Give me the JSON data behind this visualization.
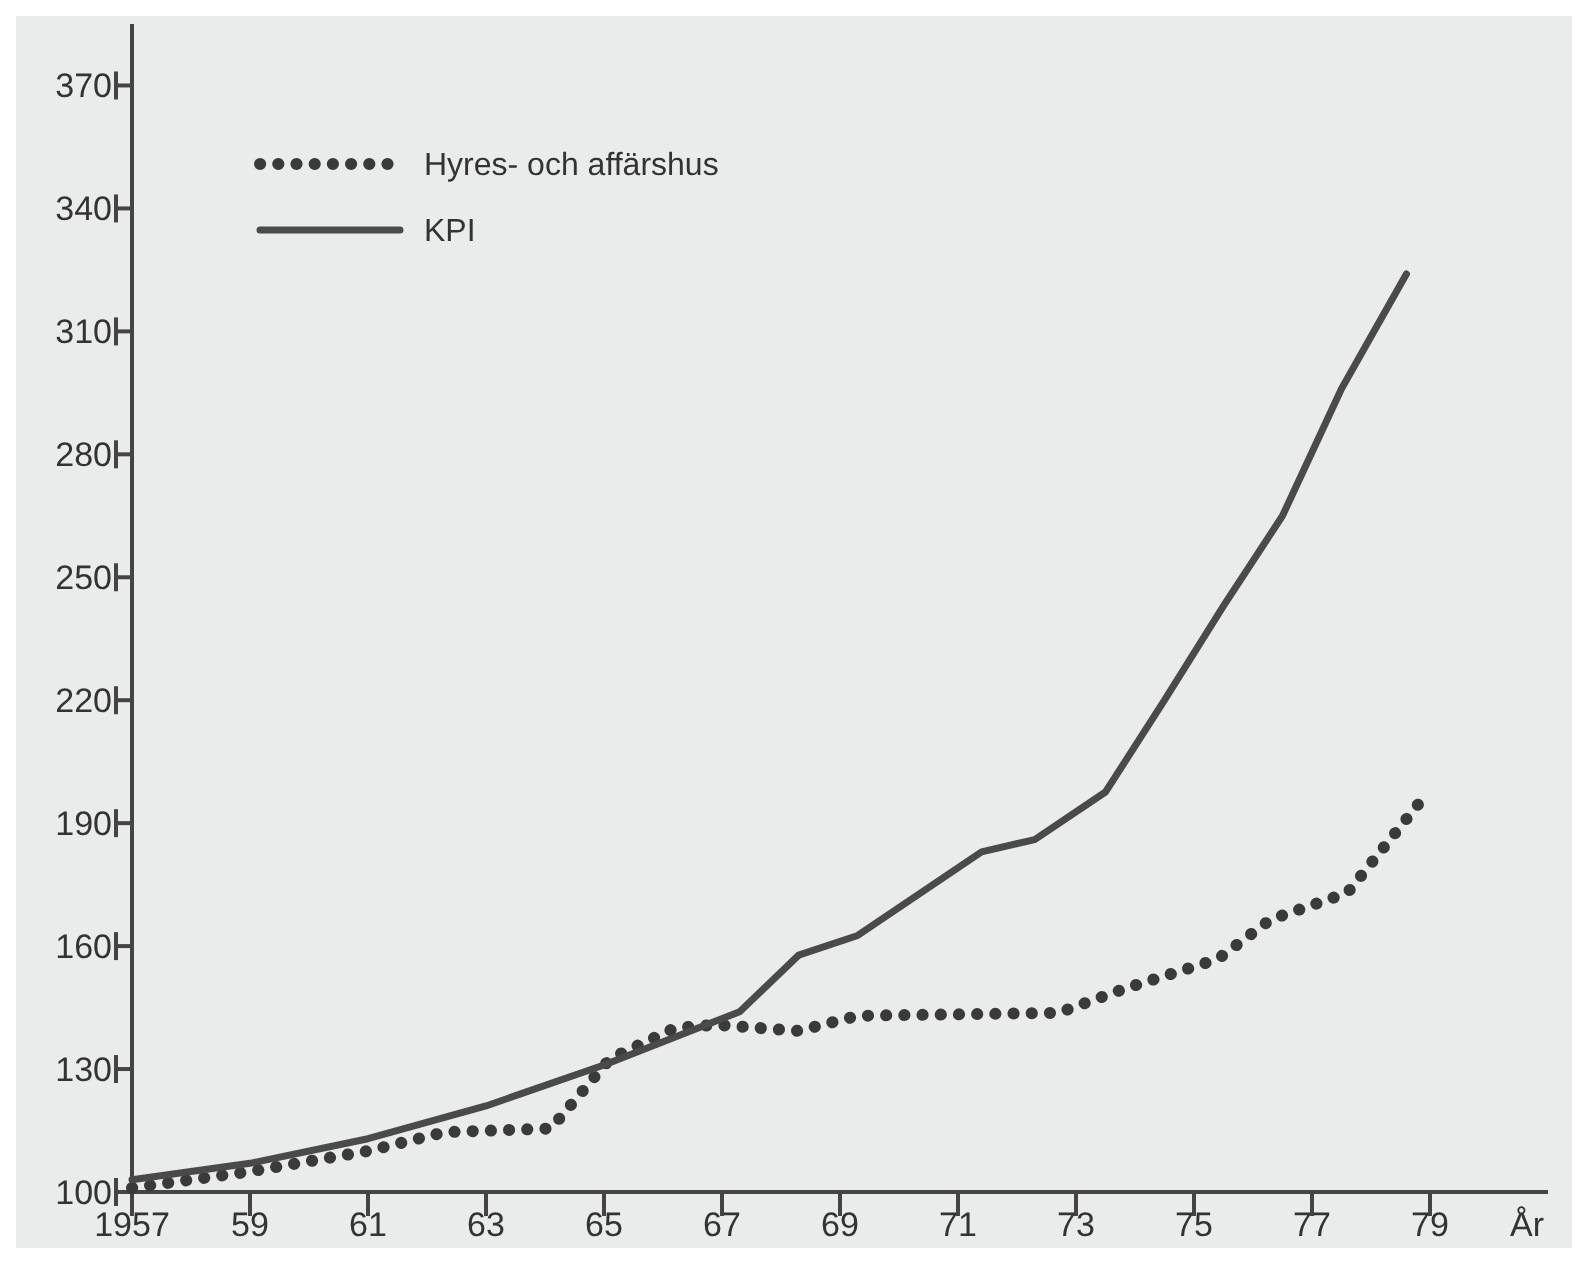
{
  "chart_data": {
    "type": "line",
    "xlabel": "År",
    "xlim": [
      1957,
      1981
    ],
    "ylim": [
      100,
      385
    ],
    "xticks": [
      {
        "value": 1957,
        "label": "1957"
      },
      {
        "value": 1959,
        "label": "59"
      },
      {
        "value": 1961,
        "label": "61"
      },
      {
        "value": 1963,
        "label": "63"
      },
      {
        "value": 1965,
        "label": "65"
      },
      {
        "value": 1967,
        "label": "67"
      },
      {
        "value": 1969,
        "label": "69"
      },
      {
        "value": 1971,
        "label": "71"
      },
      {
        "value": 1973,
        "label": "73"
      },
      {
        "value": 1975,
        "label": "75"
      },
      {
        "value": 1977,
        "label": "77"
      },
      {
        "value": 1979,
        "label": "79"
      }
    ],
    "yticks": [
      100,
      130,
      160,
      190,
      220,
      250,
      280,
      310,
      340,
      370
    ],
    "grid": false,
    "legend": "top left",
    "series": [
      {
        "name": "Hyres- och affärshus",
        "color": "#3a3a3a",
        "line_style": "dotted",
        "x": [
          1957,
          1959,
          1961,
          1962.3,
          1964.1,
          1965.1,
          1966.2,
          1966.9,
          1968.3,
          1969.3,
          1972.7,
          1973.8,
          1975.4,
          1976.3,
          1977.6,
          1978.8
        ],
        "values": [
          101,
          105,
          110,
          114.6,
          115.5,
          132.5,
          140,
          140.8,
          139.3,
          143,
          143.7,
          149.5,
          156.8,
          166.5,
          173,
          194.6
        ]
      },
      {
        "name": "KPI",
        "color": "#4a4a4a",
        "line_style": "solid",
        "x": [
          1957,
          1959,
          1961,
          1963,
          1965,
          1967.3,
          1968.3,
          1969.3,
          1971.4,
          1972.3,
          1973.5,
          1974.5,
          1975.5,
          1976.5,
          1977.5,
          1978.6
        ],
        "values": [
          103,
          107,
          113,
          121,
          131,
          144,
          157.8,
          162.6,
          183,
          186,
          197.6,
          220,
          243,
          265,
          296,
          324
        ]
      }
    ]
  }
}
